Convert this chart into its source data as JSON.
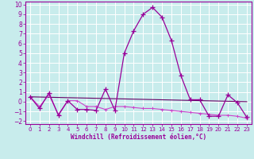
{
  "xlabel": "Windchill (Refroidissement éolien,°C)",
  "xlim": [
    -0.5,
    23.5
  ],
  "ylim": [
    -2.3,
    10.3
  ],
  "yticks": [
    -2,
    -1,
    0,
    1,
    2,
    3,
    4,
    5,
    6,
    7,
    8,
    9,
    10
  ],
  "xticks": [
    0,
    1,
    2,
    3,
    4,
    5,
    6,
    7,
    8,
    9,
    10,
    11,
    12,
    13,
    14,
    15,
    16,
    17,
    18,
    19,
    20,
    21,
    22,
    23
  ],
  "bg_color": "#c8ecec",
  "grid_color": "#ffffff",
  "line_color_main": "#990099",
  "line_color_flat1": "#cc44cc",
  "line_color_flat2": "#660066",
  "series1_x": [
    0,
    1,
    2,
    3,
    4,
    5,
    6,
    7,
    8,
    9,
    10,
    11,
    12,
    13,
    14,
    15,
    16,
    17,
    18,
    19,
    20,
    21,
    22,
    23
  ],
  "series1_y": [
    0.5,
    -0.7,
    0.9,
    -1.4,
    0.1,
    -0.8,
    -0.8,
    -0.9,
    1.3,
    -0.9,
    5.0,
    7.3,
    9.0,
    9.7,
    8.7,
    6.3,
    2.7,
    0.2,
    0.2,
    -1.5,
    -1.5,
    0.7,
    -0.1,
    -1.6
  ],
  "series2_x": [
    0,
    1,
    2,
    3,
    4,
    5,
    6,
    7,
    8,
    9,
    10,
    11,
    12,
    13,
    14,
    15,
    16,
    17,
    18,
    19,
    20,
    21,
    22,
    23
  ],
  "series2_y": [
    0.5,
    -0.5,
    0.7,
    -1.3,
    0.1,
    0.1,
    -0.5,
    -0.5,
    -0.8,
    -0.5,
    -0.5,
    -0.6,
    -0.7,
    -0.7,
    -0.8,
    -0.9,
    -1.0,
    -1.1,
    -1.2,
    -1.3,
    -1.4,
    -1.4,
    -1.5,
    -1.7
  ],
  "series3_x": [
    0,
    23
  ],
  "series3_y": [
    0.5,
    0.0
  ]
}
